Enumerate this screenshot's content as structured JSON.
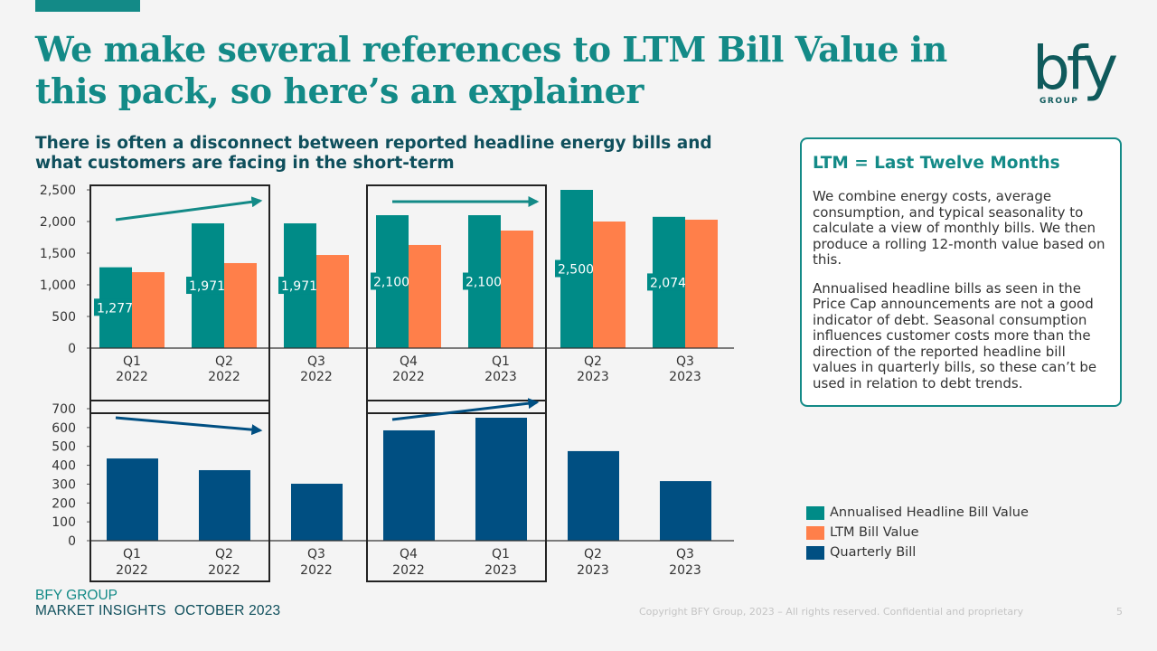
{
  "header": {
    "title": "We make several references to LTM Bill Value in this pack, so here’s an explainer",
    "subtitle": "There is often a disconnect between reported headline energy bills and what customers are facing in the short-term"
  },
  "logo": {
    "wordmark": "bfy",
    "tagline": "GROUP"
  },
  "callout": {
    "heading": "LTM = Last Twelve Months",
    "paragraphs": [
      "We combine energy costs, average consumption, and typical seasonality to calculate a view of monthly bills. We then produce a rolling 12-month value based on this.",
      "Annualised headline bills as seen in the Price Cap announcements are not a good indicator of debt. Seasonal consumption influences customer costs more than the direction of the reported headline bill values in quarterly bills, so these can’t be used in relation to debt trends."
    ]
  },
  "legend": [
    {
      "label": "Annualised Headline Bill Value",
      "color": "#008b87"
    },
    {
      "label": "LTM Bill Value",
      "color": "#ff7f4a"
    },
    {
      "label": "Quarterly Bill",
      "color": "#004f82"
    }
  ],
  "footer": {
    "brand": "BFY GROUP",
    "publication": "MARKET INSIGHTS  OCTOBER 2023",
    "copyright": "Copyright BFY Group, 2023 – All rights reserved. Confidential and proprietary",
    "page": "5"
  },
  "chart_data": [
    {
      "type": "bar",
      "title": "",
      "categories": [
        [
          "Q1",
          "2022"
        ],
        [
          "Q2",
          "2022"
        ],
        [
          "Q3",
          "2022"
        ],
        [
          "Q4",
          "2022"
        ],
        [
          "Q1",
          "2023"
        ],
        [
          "Q2",
          "2023"
        ],
        [
          "Q3",
          "2023"
        ]
      ],
      "series": [
        {
          "name": "Annualised Headline Bill Value",
          "color": "#008b87",
          "values": [
            1277,
            1971,
            1971,
            2100,
            2100,
            2500,
            2074
          ],
          "data_labels": [
            "1,277",
            "1,971",
            "1,971",
            "2,100",
            "2,100",
            "2,500",
            "2,074"
          ]
        },
        {
          "name": "LTM Bill Value",
          "color": "#ff7f4a",
          "values": [
            1200,
            1343,
            1471,
            1629,
            1857,
            2000,
            2029
          ]
        }
      ],
      "ylim": [
        0,
        2500
      ],
      "yticks": [
        0,
        500,
        1000,
        1500,
        2000,
        2500
      ],
      "ytick_labels": [
        "0",
        "500",
        "1,000",
        "1,500",
        "2,000",
        "2,500"
      ],
      "highlight_boxes": [
        [
          0,
          1
        ],
        [
          3,
          4
        ]
      ],
      "trend_arrows": [
        {
          "from": 0,
          "to": 1,
          "direction": "up",
          "color": "#138a87"
        },
        {
          "from": 3,
          "to": 4,
          "direction": "flat",
          "color": "#138a87"
        }
      ],
      "grid": false
    },
    {
      "type": "bar",
      "title": "",
      "categories": [
        [
          "Q1",
          "2022"
        ],
        [
          "Q2",
          "2022"
        ],
        [
          "Q3",
          "2022"
        ],
        [
          "Q4",
          "2022"
        ],
        [
          "Q1",
          "2023"
        ],
        [
          "Q2",
          "2023"
        ],
        [
          "Q3",
          "2023"
        ]
      ],
      "series": [
        {
          "name": "Quarterly Bill",
          "color": "#004f82",
          "values": [
            436,
            374,
            302,
            585,
            652,
            475,
            316
          ]
        }
      ],
      "ylim": [
        0,
        700
      ],
      "yticks": [
        0,
        100,
        200,
        300,
        400,
        500,
        600,
        700
      ],
      "ytick_labels": [
        "0",
        "100",
        "200",
        "300",
        "400",
        "500",
        "600",
        "700"
      ],
      "highlight_boxes": [
        [
          0,
          1
        ],
        [
          3,
          4
        ]
      ],
      "trend_arrows": [
        {
          "from": 0,
          "to": 1,
          "direction": "down",
          "color": "#004f82"
        },
        {
          "from": 3,
          "to": 4,
          "direction": "up",
          "color": "#004f82"
        }
      ],
      "grid": false
    }
  ]
}
